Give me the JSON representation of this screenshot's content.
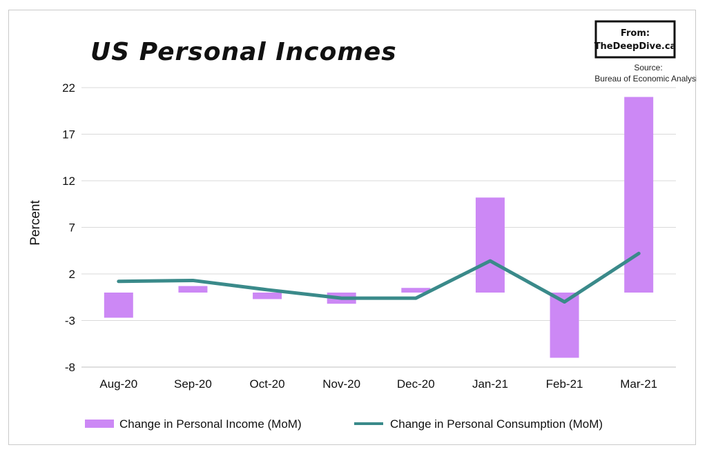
{
  "title": "US Personal Incomes",
  "brand": {
    "line1": "From:",
    "line2": "TheDeepDive.ca"
  },
  "source": {
    "line1": "Source:",
    "line2": "Bureau of Economic Analysis"
  },
  "colors": {
    "bar": "#cc88f5",
    "line": "#3a8a8a"
  },
  "chart_data": {
    "type": "bar",
    "categories": [
      "Aug-20",
      "Sep-20",
      "Oct-20",
      "Nov-20",
      "Dec-20",
      "Jan-21",
      "Feb-21",
      "Mar-21"
    ],
    "series": [
      {
        "name": "Change in Personal Income (MoM)",
        "type": "bar",
        "values": [
          -2.7,
          0.7,
          -0.7,
          -1.2,
          0.5,
          10.2,
          -7.0,
          21.0
        ]
      },
      {
        "name": "Change in Personal Consumption (MoM)",
        "type": "line",
        "values": [
          1.2,
          1.3,
          0.3,
          -0.6,
          -0.6,
          3.4,
          -1.0,
          4.2
        ]
      }
    ],
    "ylabel": "Percent",
    "xlabel": "",
    "ylim": [
      -8,
      22
    ],
    "yticks": [
      22,
      17,
      12,
      7,
      2,
      -3,
      -8
    ],
    "grid": true,
    "legend": "bottom"
  }
}
